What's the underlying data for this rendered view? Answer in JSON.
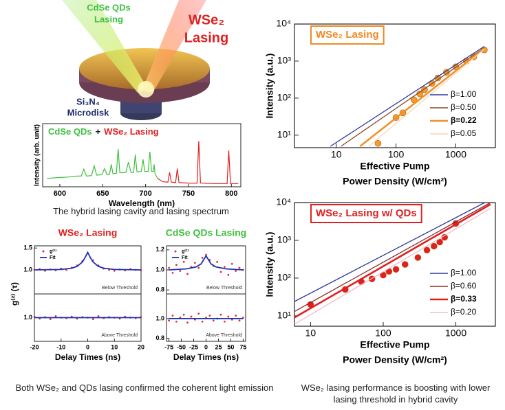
{
  "figure": {
    "illustration": {
      "qd_label": [
        "CdSe QDs",
        "Lasing"
      ],
      "wse2_label": [
        "WSe₂",
        "Lasing"
      ],
      "disk_label": [
        "Si₃N₄",
        "Microdisk"
      ]
    },
    "captions": [
      "The hybrid lasing cavity and lasing spectrum",
      "Both WSe₂ and QDs lasing confirmed the coherent light emission",
      "WSe₂ lasing performance is boosting with lower lasing threshold in hybrid cavity"
    ]
  },
  "chart_data": [
    {
      "type": "line",
      "title_parts": [
        "CdSe QDs",
        "+",
        "WSe₂ Lasing"
      ],
      "title_colors": [
        "#3ec03e",
        "#111111",
        "#e02020"
      ],
      "xlabel": "Wavelength (nm)",
      "ylabel": "Intensity (arb. unit)",
      "xlim": [
        580,
        811
      ],
      "xticks": [
        600,
        650,
        700,
        750,
        800
      ],
      "ylim": [
        0,
        1
      ],
      "series": [
        {
          "color": "#3ec03e",
          "x": [
            585,
            600,
            610,
            620,
            625,
            628,
            631,
            637,
            640,
            643,
            649,
            652,
            655,
            658,
            660,
            662,
            666,
            668,
            670,
            677,
            680,
            683,
            686,
            688,
            690,
            695,
            697,
            699,
            703,
            705,
            707,
            709,
            710,
            711,
            714
          ],
          "values": [
            0.15,
            0.17,
            0.18,
            0.2,
            0.2,
            0.35,
            0.2,
            0.21,
            0.42,
            0.22,
            0.23,
            0.36,
            0.23,
            0.24,
            0.45,
            0.25,
            0.26,
            0.78,
            0.27,
            0.28,
            0.5,
            0.28,
            0.28,
            0.66,
            0.29,
            0.3,
            0.56,
            0.3,
            0.3,
            0.72,
            0.3,
            0.3,
            0.45,
            0.25,
            0.15
          ]
        },
        {
          "color": "#e02020",
          "x": [
            714,
            720,
            726,
            728,
            730,
            735,
            737,
            739,
            750,
            760,
            762,
            764,
            780,
            795,
            797,
            799,
            808
          ],
          "values": [
            0.15,
            0.08,
            0.07,
            0.28,
            0.07,
            0.06,
            0.36,
            0.06,
            0.05,
            0.05,
            0.95,
            0.05,
            0.04,
            0.04,
            0.75,
            0.04,
            0.04
          ]
        }
      ]
    },
    {
      "type": "scatter",
      "title": "WSe₂ Lasing",
      "title_color": "#e02020",
      "xlabel": "Delay Times (ns)",
      "ylabel": "g⁽²⁾ (τ)",
      "xlim": [
        -20,
        20
      ],
      "xticks": [
        -20,
        -10,
        0,
        10,
        20
      ],
      "legend": "upper left",
      "panels": [
        {
          "label": "Below Threshold",
          "ylim": [
            0.45,
            1.55
          ],
          "yticks": [
            {
              "value": 1,
              "label": "1.0"
            },
            {
              "value": 1.5,
              "label": "1.5"
            }
          ],
          "series": [
            {
              "name": "g⁽²⁾",
              "color": "#e03030",
              "x": [
                -20,
                -18,
                -16,
                -14,
                -12,
                -10,
                -8,
                -6,
                -4,
                -2,
                0,
                2,
                4,
                6,
                8,
                10,
                12,
                14,
                16,
                18,
                20
              ],
              "values": [
                1.0,
                1.02,
                0.98,
                1.01,
                0.99,
                1.03,
                1.0,
                1.05,
                1.1,
                1.2,
                1.38,
                1.22,
                1.1,
                1.03,
                1.0,
                0.98,
                1.01,
                0.99,
                1.02,
                1.0,
                0.99
              ]
            },
            {
              "name": "Fit",
              "color": "#1a2fb8",
              "x": [
                -20,
                -10,
                -6,
                -4,
                -2,
                -1,
                0,
                1,
                2,
                4,
                6,
                10,
                20
              ],
              "values": [
                1,
                1.01,
                1.04,
                1.08,
                1.18,
                1.28,
                1.4,
                1.28,
                1.18,
                1.08,
                1.04,
                1.01,
                1
              ]
            }
          ]
        },
        {
          "label": "Above Threshold",
          "ylim": [
            0.5,
            1.5
          ],
          "yticks": [
            {
              "value": 1,
              "label": "1.0"
            }
          ],
          "series": [
            {
              "color": "#e03030",
              "x": [
                -20,
                -18,
                -16,
                -14,
                -12,
                -10,
                -8,
                -6,
                -4,
                -2,
                0,
                2,
                4,
                6,
                8,
                10,
                12,
                14,
                16,
                18,
                20
              ],
              "values": [
                1.02,
                0.98,
                1.01,
                0.97,
                1.03,
                1.0,
                0.99,
                1.02,
                0.98,
                1.01,
                1.0,
                0.97,
                1.03,
                0.99,
                1.01,
                1.0,
                0.98,
                1.02,
                1.0,
                0.99,
                1.01
              ]
            },
            {
              "color": "#1a2fb8",
              "x": [
                -20,
                20
              ],
              "values": [
                1,
                1
              ]
            }
          ]
        }
      ]
    },
    {
      "type": "scatter",
      "title": "CdSe QDs Lasing",
      "title_color": "#3ec03e",
      "xlabel": "Delay Times (ns)",
      "xlim": [
        -80,
        80
      ],
      "xticks": [
        -75,
        -50,
        -25,
        0,
        25,
        50,
        75
      ],
      "legend": "upper left",
      "panels": [
        {
          "label": "Below Threshold",
          "ylim": [
            0.76,
            1.24
          ],
          "yticks": [
            {
              "value": 0.8,
              "label": "0.8"
            },
            {
              "value": 1,
              "label": "1.0"
            },
            {
              "value": 1.2,
              "label": "1.2"
            }
          ],
          "series": [
            {
              "name": "g⁽²⁾",
              "color": "#e03030",
              "x": [
                -75,
                -67.5,
                -60,
                -52.5,
                -45,
                -37.5,
                -30,
                -22.5,
                -15,
                -7.5,
                0,
                7.5,
                15,
                22.5,
                30,
                37.5,
                45,
                52.5,
                60,
                67.5,
                75
              ],
              "values": [
                1.02,
                0.97,
                1.05,
                0.99,
                1.08,
                0.96,
                1.03,
                1.07,
                1.02,
                1.12,
                1.15,
                1.1,
                1.04,
                1.08,
                0.98,
                1.03,
                0.95,
                1.06,
                0.99,
                1.02,
                1.0
              ]
            },
            {
              "name": "Fit",
              "color": "#1a2fb8",
              "x": [
                -75,
                -40,
                -20,
                -10,
                -5,
                0,
                5,
                10,
                20,
                40,
                75
              ],
              "values": [
                1.0,
                1.01,
                1.03,
                1.06,
                1.1,
                1.14,
                1.1,
                1.06,
                1.03,
                1.01,
                1.0
              ]
            }
          ]
        },
        {
          "label": "Above Threshold",
          "ylim": [
            0.77,
            1.25
          ],
          "yticks": [
            {
              "value": 0.8,
              "label": "0.8"
            },
            {
              "value": 1,
              "label": "1.0"
            }
          ],
          "series": [
            {
              "color": "#e03030",
              "x": [
                -75,
                -67.5,
                -60,
                -52.5,
                -45,
                -37.5,
                -30,
                -22.5,
                -15,
                -7.5,
                0,
                7.5,
                15,
                22.5,
                30,
                37.5,
                45,
                52.5,
                60,
                67.5,
                75
              ],
              "values": [
                0.98,
                1.03,
                0.97,
                1.01,
                1.04,
                0.96,
                1.02,
                0.99,
                1.05,
                0.97,
                1.01,
                1.03,
                0.98,
                1.0,
                1.04,
                0.97,
                1.02,
                0.99,
                1.03,
                0.98,
                1.01
              ]
            },
            {
              "color": "#1a2fb8",
              "x": [
                -75,
                75
              ],
              "values": [
                1,
                1
              ]
            }
          ]
        }
      ]
    },
    {
      "type": "scatter",
      "title": "WSe₂ Lasing",
      "title_color": "#f08a24",
      "xlabel": [
        "Effective Pump",
        "Power Density (W/cm²)"
      ],
      "ylabel": "Intensity (a.u.)",
      "x_log": true,
      "y_log": true,
      "xlim": [
        2,
        4600
      ],
      "ylim": [
        4.6,
        10000
      ],
      "xticks": [
        10,
        100,
        1000
      ],
      "yticks": [
        {
          "value": 10,
          "label": "10¹"
        },
        {
          "value": 100,
          "label": "10²"
        },
        {
          "value": 1000,
          "label": "10³"
        },
        {
          "value": 10000,
          "label": "10⁴"
        }
      ],
      "legend": "lower right",
      "series": [
        {
          "color": "#f39c2b",
          "marker": "circle",
          "x": [
            50,
            100,
            130,
            200,
            250,
            300,
            400,
            500,
            700,
            1000,
            1500,
            2000,
            3000
          ],
          "values": [
            6,
            30,
            40,
            90,
            130,
            170,
            250,
            350,
            500,
            700,
            1000,
            1300,
            2000
          ]
        },
        {
          "name": "β=1.00",
          "color": "#2b3a9a",
          "x": [
            8,
            3000
          ],
          "values": [
            5,
            2500
          ]
        },
        {
          "name": "β=0.50",
          "color": "#8b4a2b",
          "x": [
            12,
            3000
          ],
          "values": [
            5,
            2300
          ]
        },
        {
          "name": "β=0.22",
          "color": "#f0902a",
          "bold": true,
          "x": [
            25,
            3000
          ],
          "values": [
            5,
            2200
          ]
        },
        {
          "name": "β=0.05",
          "color": "#f5d9b0",
          "x": [
            35,
            3000
          ],
          "values": [
            5,
            2100
          ]
        }
      ]
    },
    {
      "type": "scatter",
      "title": "WSe₂ Lasing w/ QDs",
      "title_color": "#e02020",
      "xlabel": [
        "Effective Pump",
        "Power Density (W/cm²)"
      ],
      "ylabel": "Intensity (a.u.)",
      "x_log": true,
      "y_log": true,
      "xlim": [
        6,
        3500
      ],
      "ylim": [
        5.3,
        10000
      ],
      "xticks": [
        10,
        100,
        1000
      ],
      "yticks": [
        {
          "value": 10,
          "label": "10¹"
        },
        {
          "value": 100,
          "label": "10²"
        },
        {
          "value": 1000,
          "label": "10³"
        },
        {
          "value": 10000,
          "label": "10⁴"
        }
      ],
      "legend": "lower right",
      "series": [
        {
          "color": "#e02020",
          "marker": "circle",
          "x": [
            10,
            30,
            50,
            70,
            100,
            120,
            150,
            200,
            300,
            400,
            500,
            600,
            700,
            1000
          ],
          "values": [
            20,
            50,
            80,
            95,
            120,
            150,
            170,
            230,
            350,
            550,
            700,
            900,
            1200,
            2800
          ]
        },
        {
          "name": "β=1.00",
          "color": "#2b3a9a",
          "x": [
            6,
            2500
          ],
          "values": [
            24,
            10000
          ]
        },
        {
          "name": "β=0.60",
          "color": "#8b2a2a",
          "x": [
            6,
            3000
          ],
          "values": [
            13,
            10000
          ]
        },
        {
          "name": "β=0.33",
          "color": "#e02020",
          "bold": true,
          "x": [
            6,
            3000
          ],
          "values": [
            9,
            9000
          ]
        },
        {
          "name": "β=0.20",
          "color": "#f4b8c8",
          "x": [
            6,
            3000
          ],
          "values": [
            6,
            7000
          ]
        }
      ]
    }
  ]
}
